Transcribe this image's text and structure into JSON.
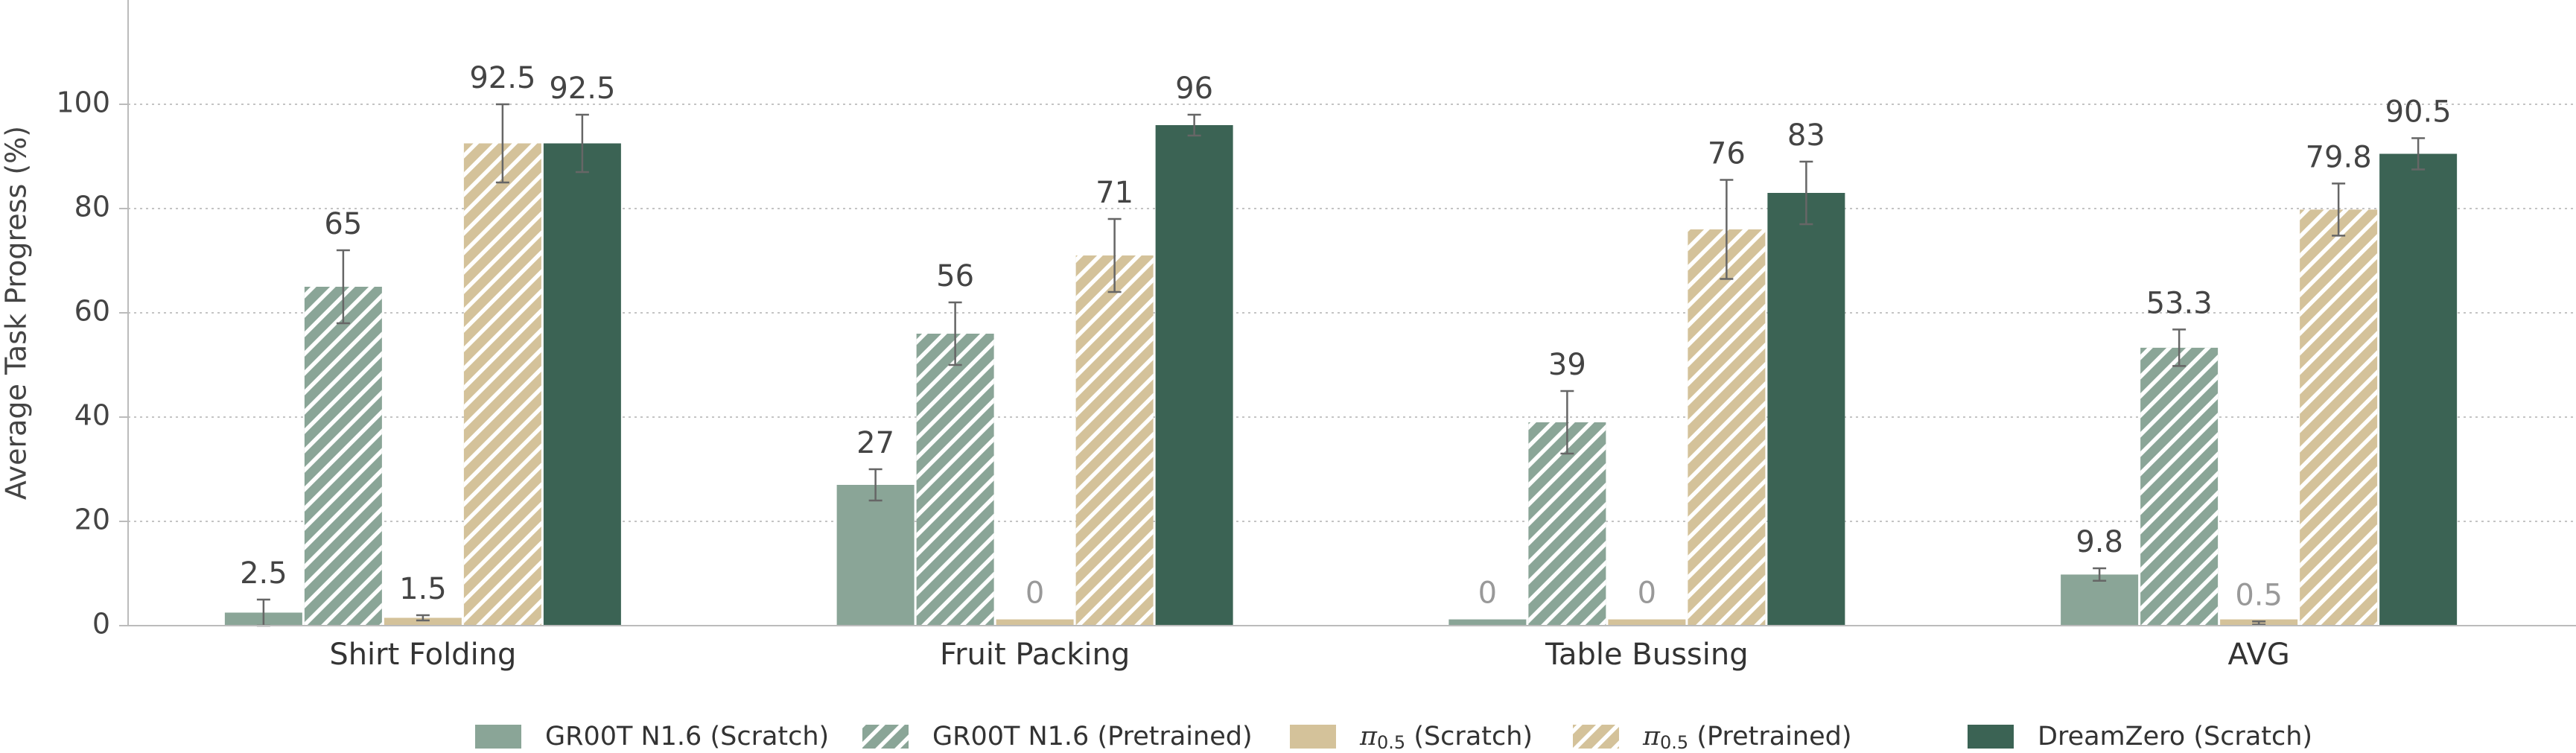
{
  "chart_data": {
    "type": "bar",
    "title": "",
    "xlabel": "",
    "ylabel": "Average Task Progress (%)",
    "ylim": [
      0,
      115
    ],
    "yticks": [
      0,
      20,
      40,
      60,
      80,
      100
    ],
    "grid": "horizontal dotted",
    "legend_position": "bottom",
    "categories": [
      "Shirt Folding",
      "Fruit Packing",
      "Table Bussing",
      "AVG"
    ],
    "series": [
      {
        "name": "GR00T N1.6 (Scratch)",
        "name_parts": {
          "base": "GR00T N1.6 (Scratch)",
          "sub": "",
          "suffix": ""
        },
        "color": "#8aa597",
        "hatch": false,
        "values": [
          2.5,
          27,
          0,
          9.8
        ],
        "labels": [
          "2.5",
          "27",
          "0",
          "9.8"
        ],
        "errors": [
          2.5,
          3,
          0,
          1.2
        ]
      },
      {
        "name": "GR00T N1.6 (Pretrained)",
        "name_parts": {
          "base": "GR00T N1.6 (Pretrained)",
          "sub": "",
          "suffix": ""
        },
        "color": "#8aa597",
        "hatch": true,
        "values": [
          65,
          56,
          39,
          53.3
        ],
        "labels": [
          "65",
          "56",
          "39",
          "53.3"
        ],
        "errors": [
          7,
          6,
          6,
          3.5
        ]
      },
      {
        "name": "π0.5 (Scratch)",
        "name_parts": {
          "base": "π",
          "sub": "0.5",
          "suffix": " (Scratch)"
        },
        "color": "#d4c29a",
        "hatch": false,
        "values": [
          1.5,
          0,
          0,
          0.5
        ],
        "labels": [
          "1.5",
          "0",
          "0",
          "0.5"
        ],
        "errors": [
          0.5,
          0,
          0,
          0.3
        ]
      },
      {
        "name": "π0.5 (Pretrained)",
        "name_parts": {
          "base": "π",
          "sub": "0.5",
          "suffix": " (Pretrained)"
        },
        "color": "#d4c29a",
        "hatch": true,
        "values": [
          92.5,
          71,
          76,
          79.8
        ],
        "labels": [
          "92.5",
          "71",
          "76",
          "79.8"
        ],
        "errors": [
          7.5,
          7,
          9.5,
          5
        ]
      },
      {
        "name": "DreamZero (Scratch)",
        "name_parts": {
          "base": "DreamZero (Scratch)",
          "sub": "",
          "suffix": ""
        },
        "color": "#3b6354",
        "hatch": false,
        "values": [
          92.5,
          96,
          83,
          90.5
        ],
        "labels": [
          "92.5",
          "96",
          "83",
          "90.5"
        ],
        "errors": [
          5.5,
          2,
          6,
          3
        ]
      }
    ]
  }
}
